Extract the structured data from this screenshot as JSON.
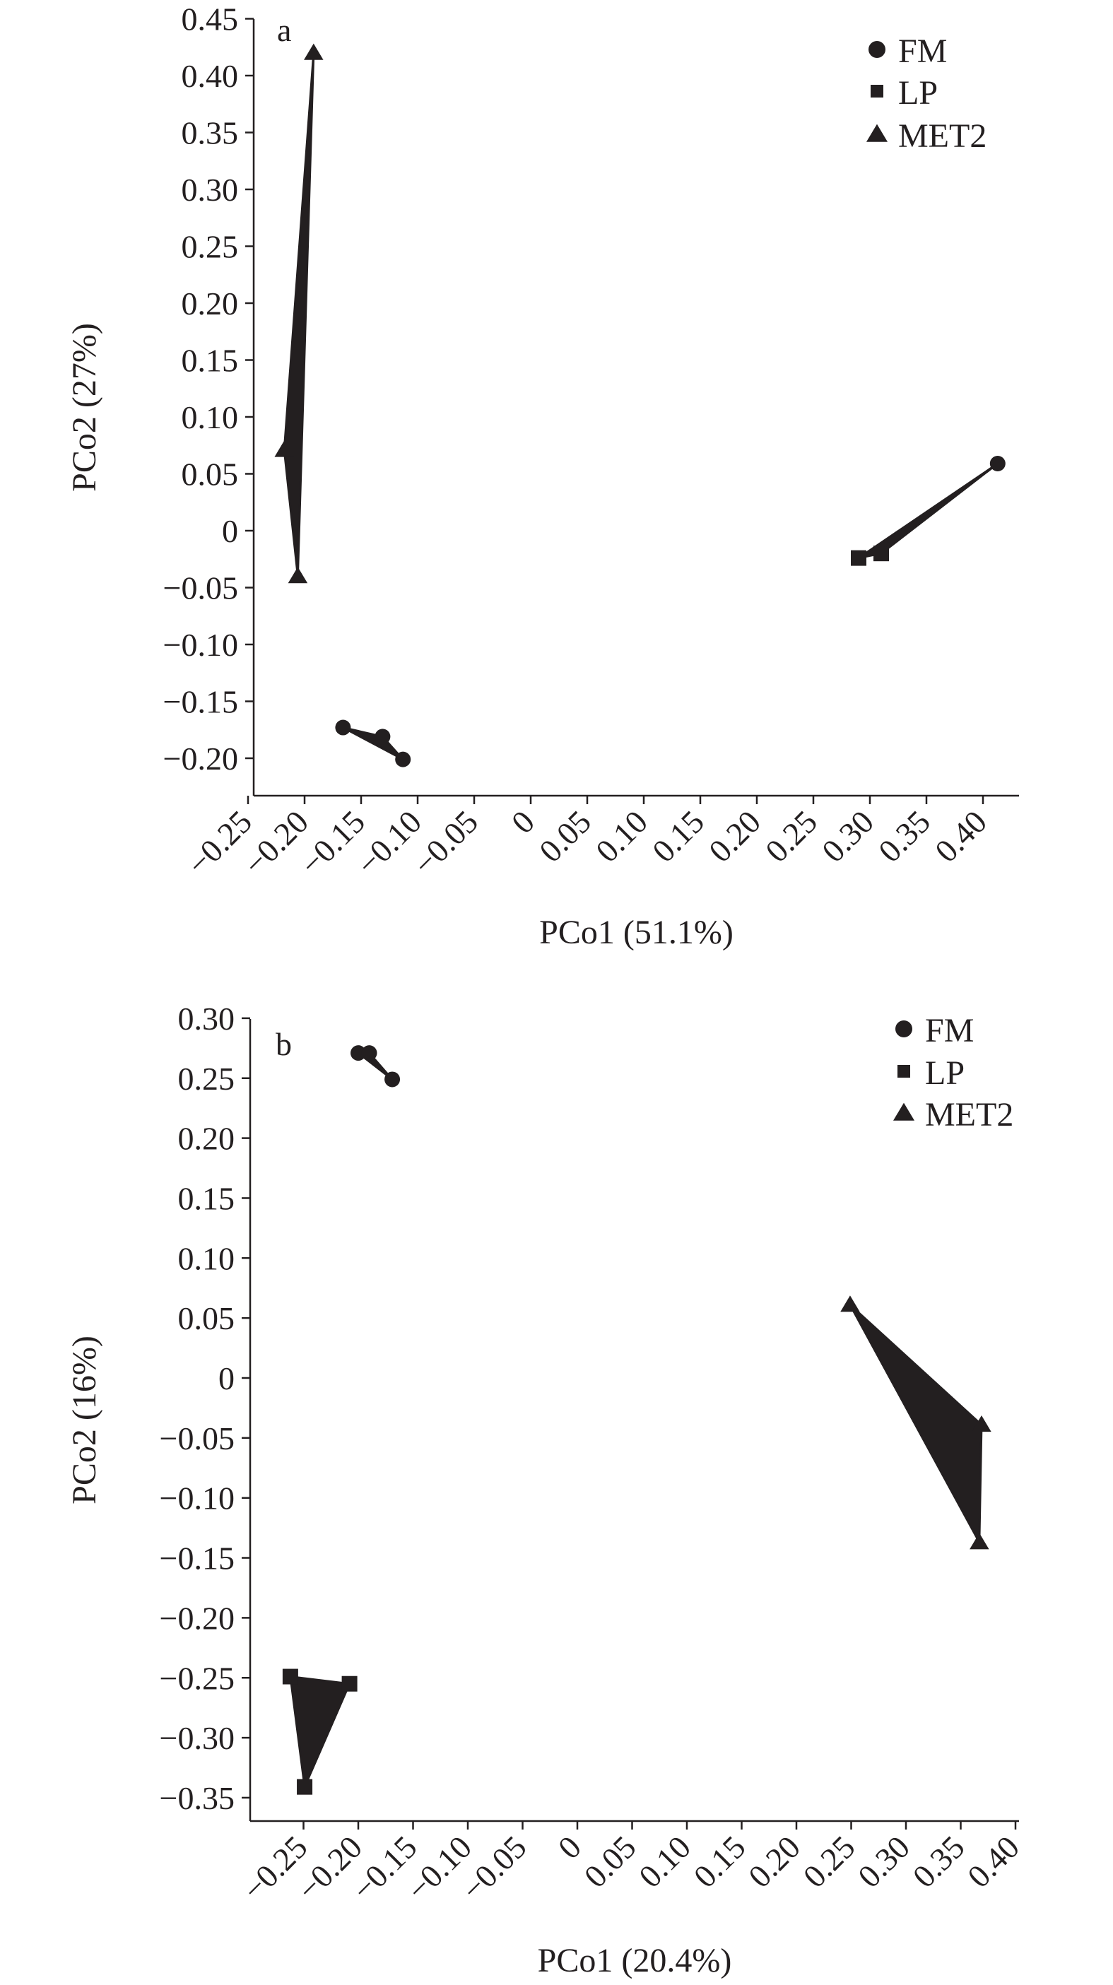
{
  "colors": {
    "ink": "#231f20",
    "background": "#ffffff"
  },
  "chart_data": [
    {
      "type": "scatter",
      "panel_label": "a",
      "xlabel": "PCo1 (51.1%)",
      "ylabel": "PCo2 (27%)",
      "xlim": [
        -0.25,
        0.445
      ],
      "ylim": [
        -0.232,
        0.45
      ],
      "xticks": [
        -0.25,
        -0.2,
        -0.15,
        -0.1,
        -0.05,
        0,
        0.05,
        0.1,
        0.15,
        0.2,
        0.25,
        0.3,
        0.35,
        0.4
      ],
      "xtick_labels": [
        "−0.25",
        "−0.20",
        "−0.15",
        "−0.10",
        "−0.05",
        "0",
        "0.05",
        "0.10",
        "0.15",
        "0.20",
        "0.25",
        "0.30",
        "0.35",
        "0.40"
      ],
      "yticks": [
        0.45,
        0.4,
        0.35,
        0.3,
        0.25,
        0.2,
        0.15,
        0.1,
        0.05,
        0,
        -0.05,
        -0.1,
        -0.15,
        -0.2
      ],
      "ytick_labels": [
        "0.45",
        "0.40",
        "0.35",
        "0.30",
        "0.25",
        "0.20",
        "0.15",
        "0.10",
        "0.05",
        "0",
        "−0.05",
        "−0.10",
        "−0.15",
        "−0.20"
      ],
      "grid": false,
      "legend": {
        "placement": "top-right",
        "entries": [
          "FM",
          "LP",
          "MET2"
        ]
      },
      "series": [
        {
          "name": "FM",
          "marker": "circle",
          "points": [
            [
              -0.166,
              -0.173
            ],
            [
              -0.131,
              -0.181
            ],
            [
              -0.113,
              -0.201
            ],
            [
              0.413,
              0.059
            ]
          ]
        },
        {
          "name": "LP",
          "marker": "square",
          "points": [
            [
              0.29,
              -0.024
            ],
            [
              0.31,
              -0.02
            ]
          ]
        },
        {
          "name": "MET2",
          "marker": "triangle",
          "points": [
            [
              -0.192,
              0.42
            ],
            [
              -0.218,
              0.071
            ],
            [
              -0.206,
              -0.04
            ]
          ]
        }
      ],
      "hulls": [
        [
          [
            -0.192,
            0.42
          ],
          [
            -0.218,
            0.071
          ],
          [
            -0.206,
            -0.04
          ]
        ],
        [
          [
            -0.166,
            -0.173
          ],
          [
            -0.131,
            -0.181
          ],
          [
            -0.113,
            -0.201
          ]
        ],
        [
          [
            0.29,
            -0.024
          ],
          [
            0.31,
            -0.02
          ],
          [
            0.413,
            0.059
          ]
        ]
      ]
    },
    {
      "type": "scatter",
      "panel_label": "b",
      "xlabel": "PCo1 (20.4%)",
      "ylabel": "PCo2 (16%)",
      "xlim": [
        -0.294,
        0.4
      ],
      "ylim": [
        -0.369,
        0.3
      ],
      "xticks": [
        -0.25,
        -0.2,
        -0.15,
        -0.1,
        -0.05,
        0,
        0.05,
        0.1,
        0.15,
        0.2,
        0.25,
        0.3,
        0.35,
        0.4
      ],
      "xtick_labels": [
        "−0.25",
        "−0.20",
        "−0.15",
        "−0.10",
        "−0.05",
        "0",
        "0.05",
        "0.10",
        "0.15",
        "0.20",
        "0.25",
        "0.30",
        "0.35",
        "0.40"
      ],
      "yticks": [
        0.3,
        0.25,
        0.2,
        0.15,
        0.1,
        0.05,
        0,
        -0.05,
        -0.1,
        -0.15,
        -0.2,
        -0.25,
        -0.3,
        -0.35
      ],
      "ytick_labels": [
        "0.30",
        "0.25",
        "0.20",
        "0.15",
        "0.10",
        "0.05",
        "0",
        "−0.05",
        "−0.10",
        "−0.15",
        "−0.20",
        "−0.25",
        "−0.30",
        "−0.35"
      ],
      "grid": false,
      "legend": {
        "placement": "top-right",
        "entries": [
          "FM",
          "LP",
          "MET2"
        ]
      },
      "series": [
        {
          "name": "FM",
          "marker": "circle",
          "points": [
            [
              -0.2,
              0.271
            ],
            [
              -0.19,
              0.271
            ],
            [
              -0.169,
              0.249
            ]
          ]
        },
        {
          "name": "LP",
          "marker": "square",
          "points": [
            [
              -0.262,
              -0.249
            ],
            [
              -0.208,
              -0.255
            ],
            [
              -0.249,
              -0.341
            ]
          ]
        },
        {
          "name": "MET2",
          "marker": "triangle",
          "points": [
            [
              0.249,
              0.061
            ],
            [
              0.369,
              -0.039
            ],
            [
              0.367,
              -0.137
            ]
          ]
        }
      ],
      "hulls": [
        [
          [
            -0.2,
            0.271
          ],
          [
            -0.19,
            0.271
          ],
          [
            -0.169,
            0.249
          ]
        ],
        [
          [
            -0.262,
            -0.249
          ],
          [
            -0.208,
            -0.255
          ],
          [
            -0.249,
            -0.341
          ]
        ],
        [
          [
            0.249,
            0.061
          ],
          [
            0.369,
            -0.039
          ],
          [
            0.367,
            -0.137
          ]
        ]
      ]
    }
  ]
}
